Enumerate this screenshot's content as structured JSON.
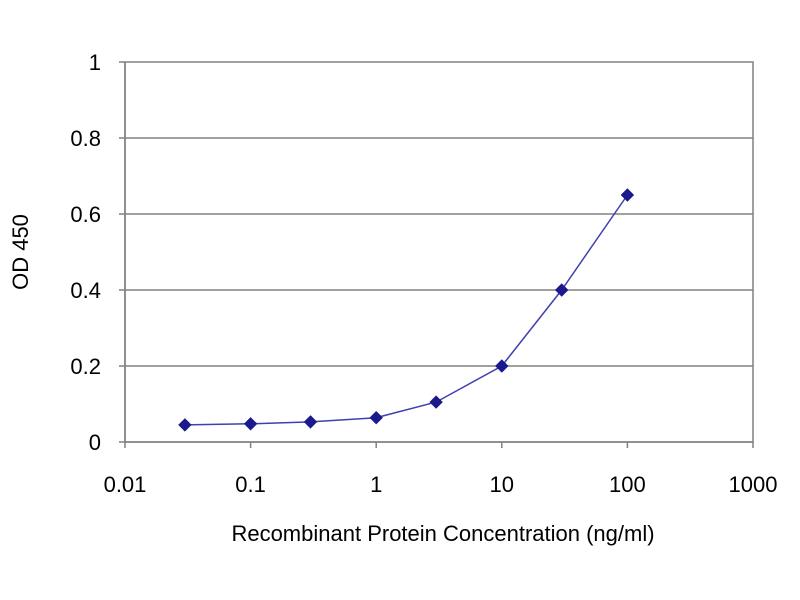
{
  "chart_data": {
    "type": "line",
    "title": "",
    "xlabel": "Recombinant Protein Concentration (ng/ml)",
    "ylabel": "OD 450",
    "x_scale": "log",
    "xlim": [
      0.01,
      1000
    ],
    "ylim": [
      0,
      1
    ],
    "x_ticks": [
      0.01,
      0.1,
      1,
      10,
      100,
      1000
    ],
    "x_tick_labels": [
      "0.01",
      "0.1",
      "1",
      "10",
      "100",
      "1000"
    ],
    "y_ticks": [
      0,
      0.2,
      0.4,
      0.6,
      0.8,
      1
    ],
    "y_tick_labels": [
      "0",
      "0.2",
      "0.4",
      "0.6",
      "0.8",
      "1"
    ],
    "grid": "horizontal",
    "legend": "none",
    "series": [
      {
        "color": "#1a1a8c",
        "marker": "diamond",
        "x": [
          0.03,
          0.1,
          0.3,
          1,
          3,
          10,
          30,
          100
        ],
        "y": [
          0.045,
          0.048,
          0.053,
          0.064,
          0.105,
          0.2,
          0.4,
          0.65
        ]
      }
    ]
  }
}
